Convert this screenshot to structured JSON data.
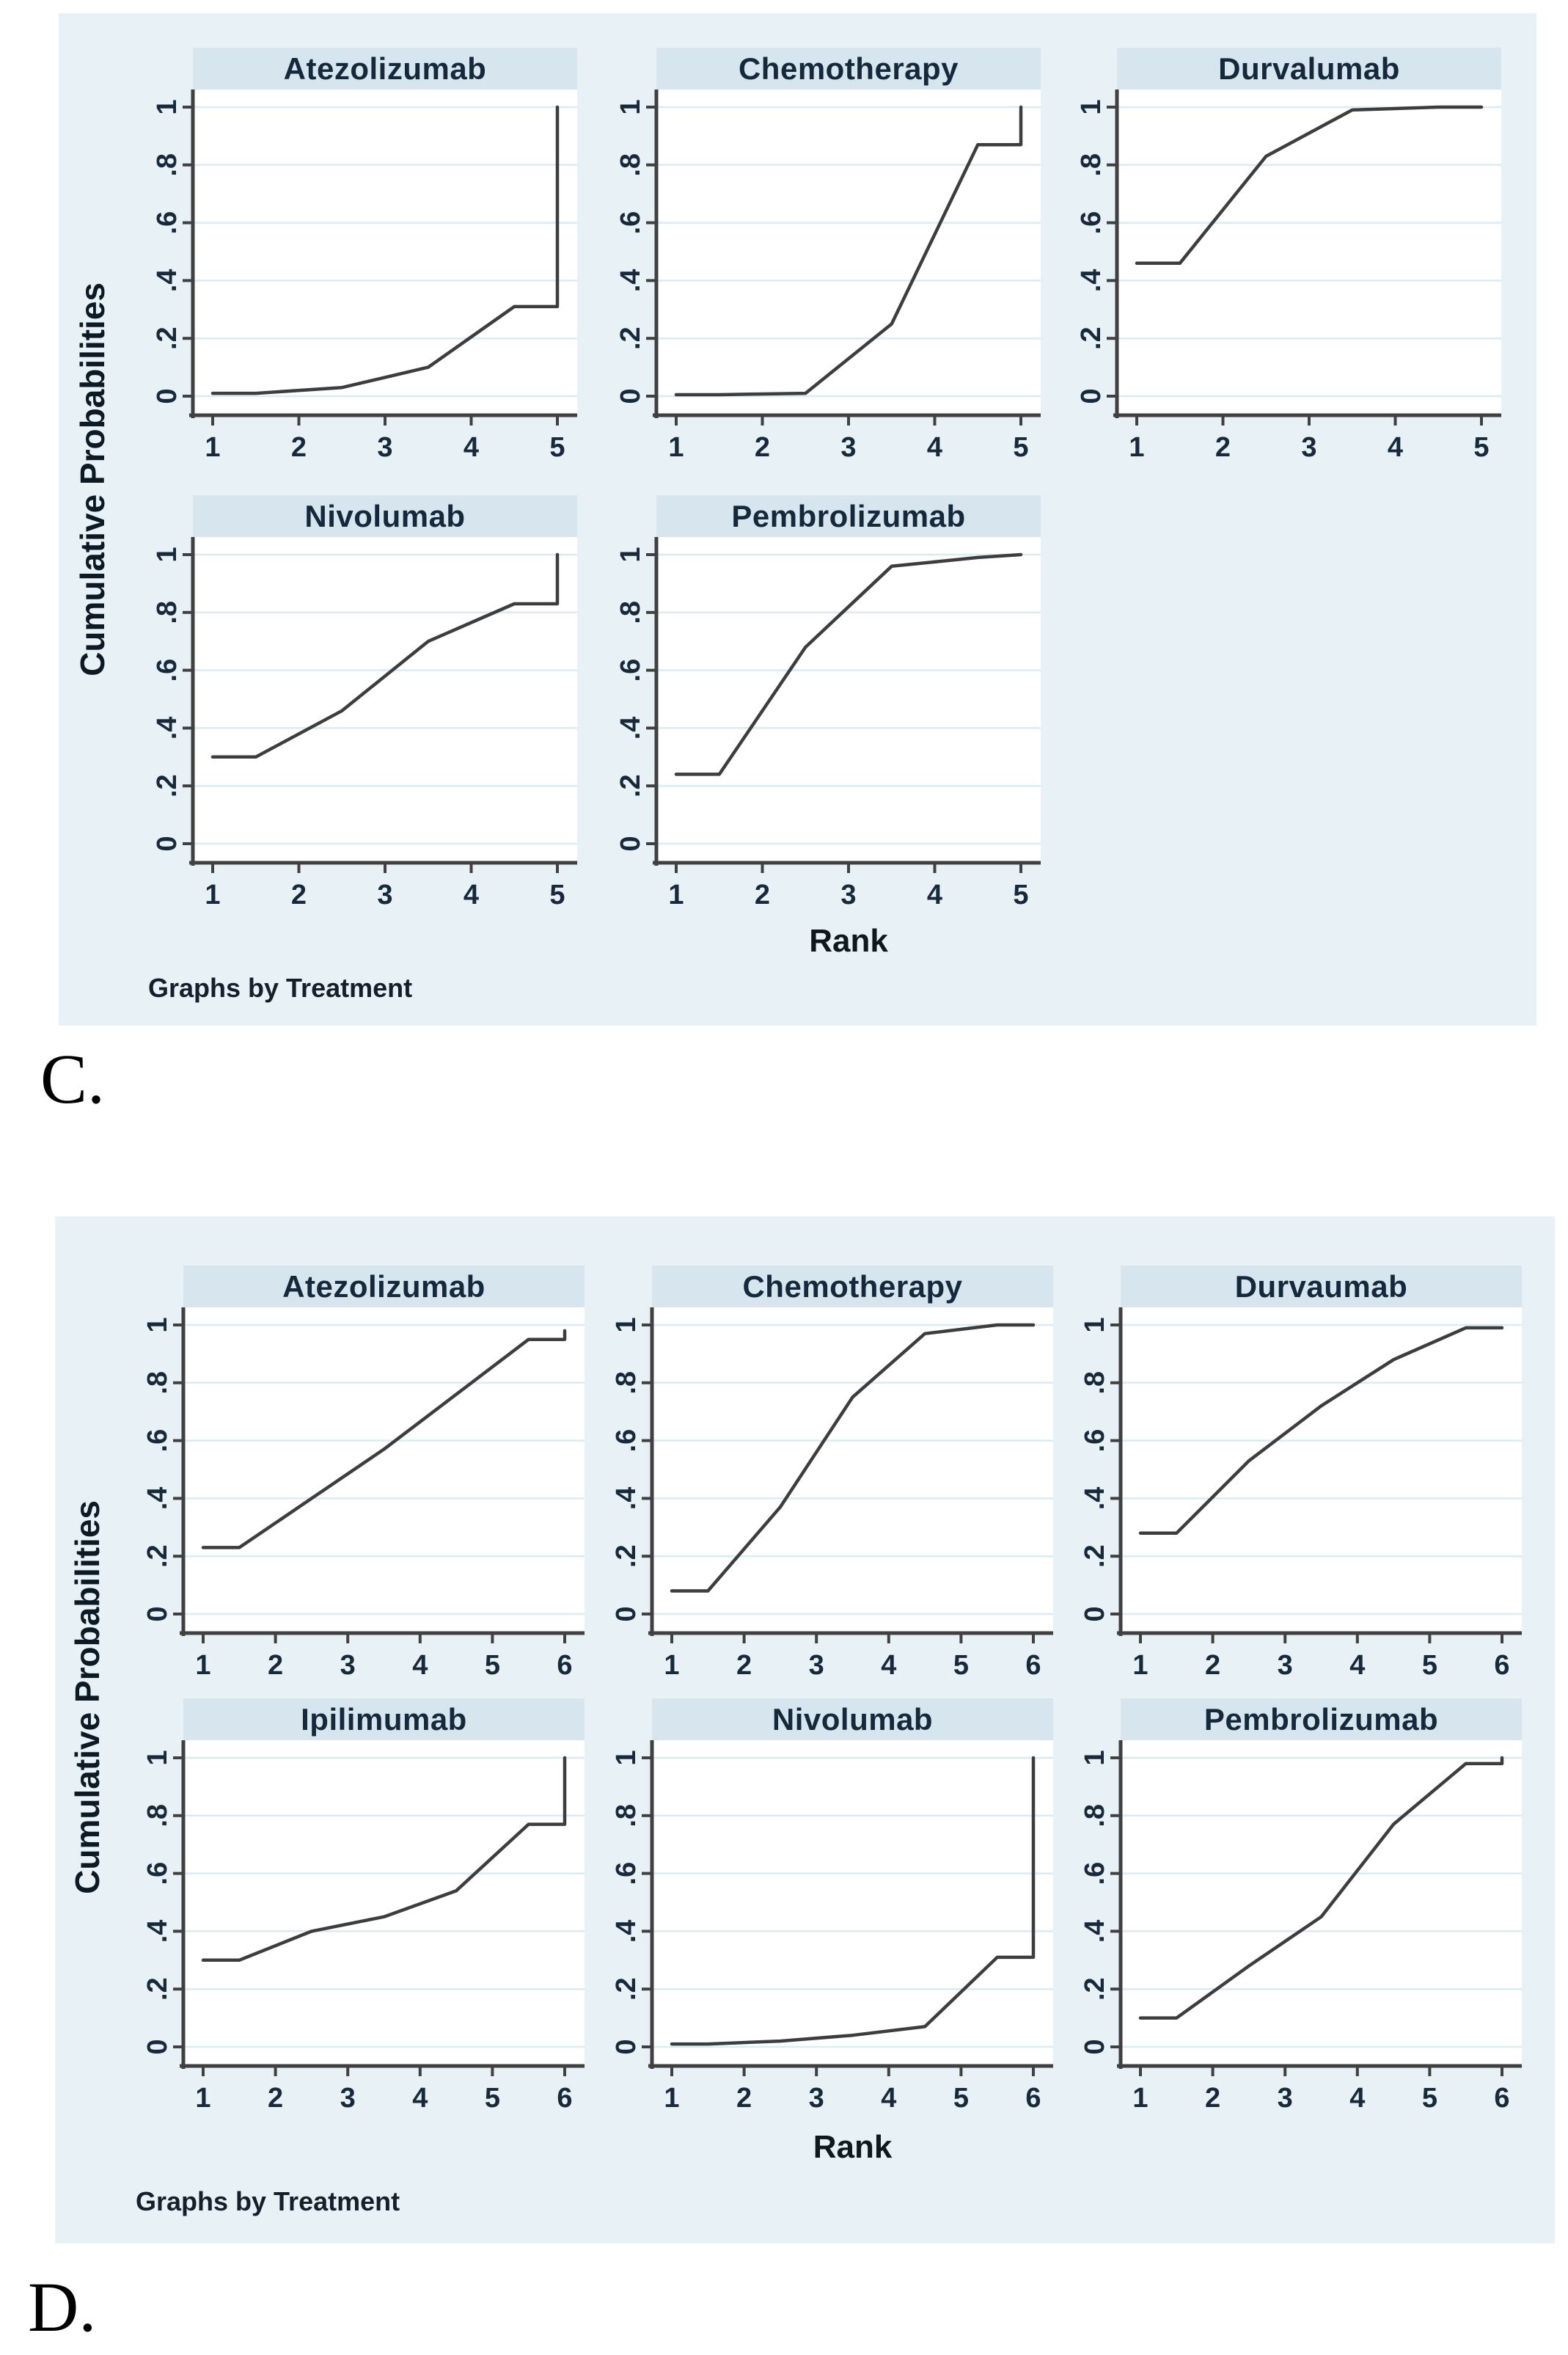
{
  "chart_data": [
    {
      "type": "line",
      "figure_label": "C.",
      "xlabel": "Rank",
      "ylabel": "Cumulative Probabilities",
      "note": "Graphs by Treatment",
      "grid": "horizontal",
      "legend": "none (small multiples by treatment)",
      "xlim": [
        1,
        5
      ],
      "ylim": [
        0,
        1
      ],
      "x_ticks": [
        "1",
        "2",
        "3",
        "4",
        "5"
      ],
      "y_ticks": [
        {
          "value": 0,
          "label": "0"
        },
        {
          "value": 0.2,
          "label": ".2"
        },
        {
          "value": 0.4,
          "label": ".4"
        },
        {
          "value": 0.6,
          "label": ".6"
        },
        {
          "value": 0.8,
          "label": ".8"
        },
        {
          "value": 1,
          "label": "1"
        }
      ],
      "series": [
        {
          "name": "Atezolizumab",
          "points": [
            [
              1,
              0.01
            ],
            [
              1.5,
              0.01
            ],
            [
              2.5,
              0.03
            ],
            [
              3.5,
              0.1
            ],
            [
              4.5,
              0.31
            ],
            [
              5,
              0.31
            ],
            [
              5,
              1.0
            ]
          ]
        },
        {
          "name": "Chemotherapy",
          "points": [
            [
              1,
              0.005
            ],
            [
              1.5,
              0.005
            ],
            [
              2.5,
              0.01
            ],
            [
              3.5,
              0.25
            ],
            [
              4.5,
              0.87
            ],
            [
              5,
              0.87
            ],
            [
              5,
              1.0
            ]
          ]
        },
        {
          "name": "Durvalumab",
          "points": [
            [
              1,
              0.46
            ],
            [
              1.5,
              0.46
            ],
            [
              2.5,
              0.83
            ],
            [
              3.5,
              0.99
            ],
            [
              4.5,
              1.0
            ],
            [
              5,
              1.0
            ]
          ]
        },
        {
          "name": "Nivolumab",
          "points": [
            [
              1,
              0.3
            ],
            [
              1.5,
              0.3
            ],
            [
              2.5,
              0.46
            ],
            [
              3.5,
              0.7
            ],
            [
              4.5,
              0.83
            ],
            [
              5,
              0.83
            ],
            [
              5,
              1.0
            ]
          ]
        },
        {
          "name": "Pembrolizumab",
          "points": [
            [
              1,
              0.24
            ],
            [
              1.5,
              0.24
            ],
            [
              2.5,
              0.68
            ],
            [
              3.5,
              0.96
            ],
            [
              4.5,
              0.99
            ],
            [
              5,
              1.0
            ]
          ]
        }
      ]
    },
    {
      "type": "line",
      "figure_label": "D.",
      "xlabel": "Rank",
      "ylabel": "Cumulative Probabilities",
      "note": "Graphs by Treatment",
      "grid": "horizontal",
      "legend": "none (small multiples by treatment)",
      "xlim": [
        1,
        6
      ],
      "ylim": [
        0,
        1
      ],
      "x_ticks": [
        "1",
        "2",
        "3",
        "4",
        "5",
        "6"
      ],
      "y_ticks": [
        {
          "value": 0,
          "label": "0"
        },
        {
          "value": 0.2,
          "label": ".2"
        },
        {
          "value": 0.4,
          "label": ".4"
        },
        {
          "value": 0.6,
          "label": ".6"
        },
        {
          "value": 0.8,
          "label": ".8"
        },
        {
          "value": 1,
          "label": "1"
        }
      ],
      "series": [
        {
          "name": "Atezolizumab",
          "points": [
            [
              1,
              0.23
            ],
            [
              1.5,
              0.23
            ],
            [
              2.5,
              0.4
            ],
            [
              3.5,
              0.57
            ],
            [
              4.5,
              0.76
            ],
            [
              5.5,
              0.95
            ],
            [
              6,
              0.95
            ],
            [
              6,
              0.98
            ]
          ]
        },
        {
          "name": "Chemotherapy",
          "points": [
            [
              1,
              0.08
            ],
            [
              1.5,
              0.08
            ],
            [
              2.5,
              0.37
            ],
            [
              3.5,
              0.75
            ],
            [
              4.5,
              0.97
            ],
            [
              5.5,
              1.0
            ],
            [
              6,
              1.0
            ]
          ]
        },
        {
          "name": "Durvaumab",
          "points": [
            [
              1,
              0.28
            ],
            [
              1.5,
              0.28
            ],
            [
              2.5,
              0.53
            ],
            [
              3.5,
              0.72
            ],
            [
              4.5,
              0.88
            ],
            [
              5.5,
              0.99
            ],
            [
              6,
              0.99
            ]
          ]
        },
        {
          "name": "Ipilimumab",
          "points": [
            [
              1,
              0.3
            ],
            [
              1.5,
              0.3
            ],
            [
              2.5,
              0.4
            ],
            [
              3.5,
              0.45
            ],
            [
              4.5,
              0.54
            ],
            [
              5.5,
              0.77
            ],
            [
              6,
              0.77
            ],
            [
              6,
              1.0
            ]
          ]
        },
        {
          "name": "Nivolumab",
          "points": [
            [
              1,
              0.01
            ],
            [
              1.5,
              0.01
            ],
            [
              2.5,
              0.02
            ],
            [
              3.5,
              0.04
            ],
            [
              4.5,
              0.07
            ],
            [
              5.5,
              0.31
            ],
            [
              6,
              0.31
            ],
            [
              6,
              1.0
            ]
          ]
        },
        {
          "name": "Pembrolizumab",
          "points": [
            [
              1,
              0.1
            ],
            [
              1.5,
              0.1
            ],
            [
              2.5,
              0.28
            ],
            [
              3.5,
              0.45
            ],
            [
              4.5,
              0.77
            ],
            [
              5.5,
              0.98
            ],
            [
              6,
              0.98
            ],
            [
              6,
              1.0
            ]
          ]
        }
      ]
    }
  ],
  "style": {
    "panel_bg": "#e8f1f5",
    "header_bg": "#d7e5ee",
    "gridline": "#d9ecf5",
    "axis": "#404040",
    "curve": "#3d3d3d",
    "text": "#17293b"
  }
}
